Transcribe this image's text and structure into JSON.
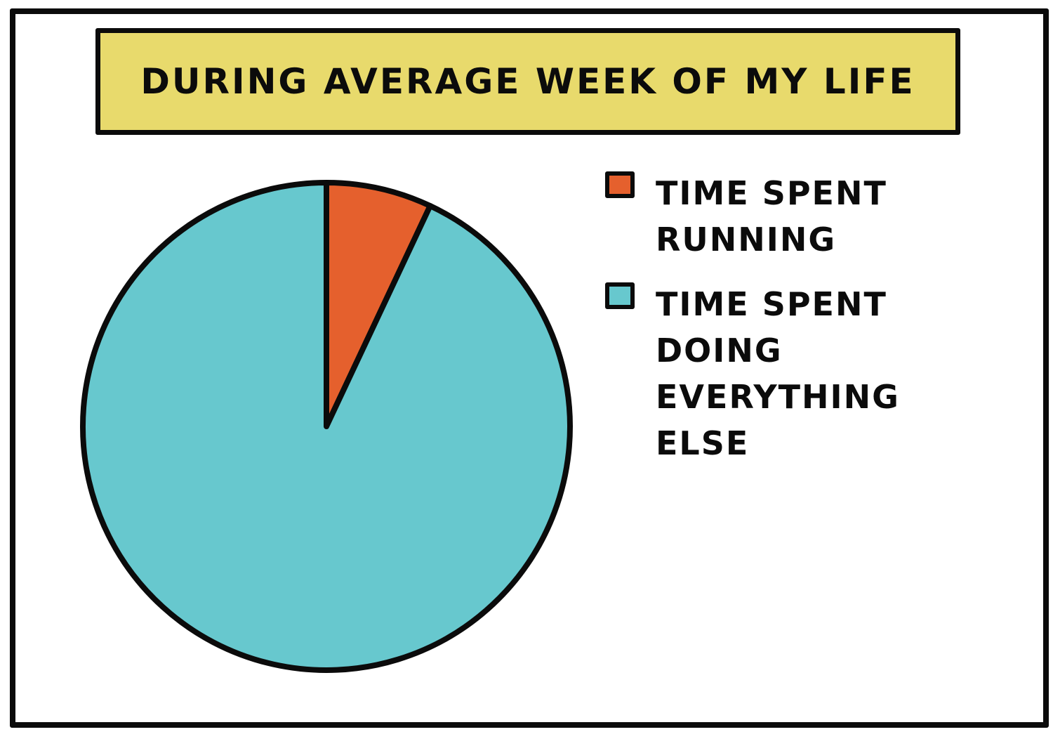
{
  "chart_data": {
    "type": "pie",
    "title": "DURING AVERAGE WEEK OF MY LIFE",
    "slices": [
      {
        "label": "TIME SPENT\nRUNNING",
        "value": 7,
        "color": "#e5602d"
      },
      {
        "label": "TIME SPENT\nDOING\nEVERYTHING\nELSE",
        "value": 93,
        "color": "#67c8ce"
      }
    ],
    "legend_position": "right"
  },
  "colors": {
    "title_background": "#e8da6c",
    "outline": "#0b0b0b"
  }
}
